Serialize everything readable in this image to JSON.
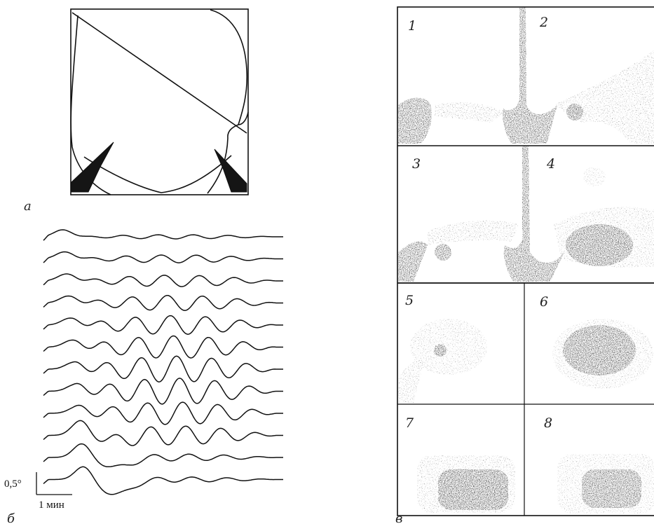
{
  "panels": {
    "a": {
      "label": "а"
    },
    "b": {
      "label": "б"
    },
    "c": {
      "label": "в"
    }
  },
  "scale_bar": {
    "vertical_label": "0,5°",
    "horizontal_label": "1 мин"
  },
  "traces": {
    "count": 12
  },
  "frames": [
    {
      "number": "1"
    },
    {
      "number": "2"
    },
    {
      "number": "3"
    },
    {
      "number": "4"
    },
    {
      "number": "5"
    },
    {
      "number": "6"
    },
    {
      "number": "7"
    },
    {
      "number": "8"
    }
  ],
  "colors": {
    "ink": "#111111",
    "stipple": "#1a1a1a",
    "paper": "#ffffff"
  }
}
